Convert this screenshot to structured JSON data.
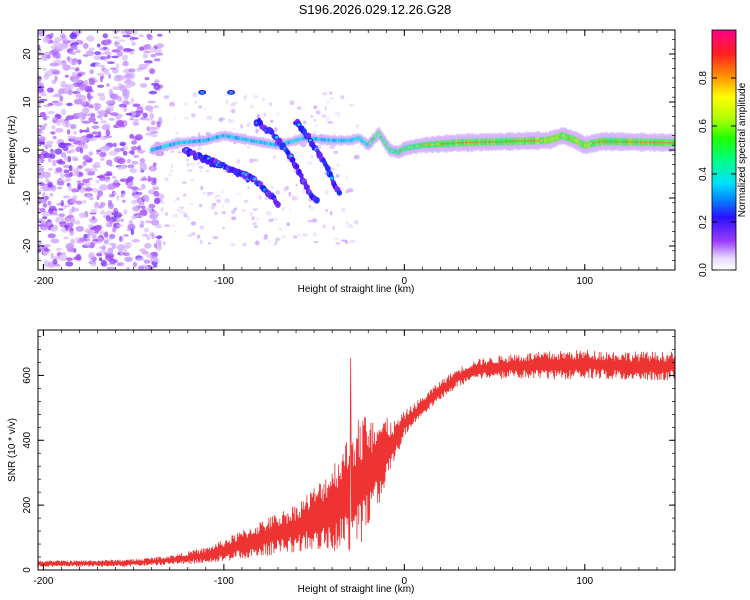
{
  "title": "S196.2026.029.12.26.G28",
  "chart_data": [
    {
      "type": "heatmap",
      "xlabel": "Height of straight line (km)",
      "ylabel": "Frequency (Hz)",
      "xlim": [
        -203,
        150
      ],
      "ylim": [
        -25,
        25
      ],
      "xticks": [
        -200,
        -100,
        0,
        100
      ],
      "yticks": [
        -20,
        -10,
        0,
        10,
        20
      ],
      "colorbar": {
        "label": "Normalized spectral amplitude",
        "range": [
          0,
          1
        ],
        "ticks": [
          0,
          0.2,
          0.4,
          0.6,
          0.8
        ],
        "tick_labels": [
          "0.0",
          "0.2",
          "0.4",
          "0.6",
          "0.8"
        ]
      },
      "ridges": [
        {
          "name": "carrier",
          "points": [
            [
              -140,
              0
            ],
            [
              -125,
              1.5
            ],
            [
              -110,
              2
            ],
            [
              -100,
              3
            ],
            [
              -85,
              2
            ],
            [
              -70,
              1
            ],
            [
              -55,
              2.5
            ],
            [
              -40,
              2
            ],
            [
              -30,
              2
            ],
            [
              -25,
              2.5
            ],
            [
              -20,
              1
            ],
            [
              -14,
              3.5
            ],
            [
              -8,
              0
            ],
            [
              -3,
              -0.5
            ],
            [
              0,
              0.3
            ],
            [
              10,
              1
            ],
            [
              30,
              1.5
            ],
            [
              60,
              1.8
            ],
            [
              80,
              2
            ],
            [
              88,
              3
            ],
            [
              95,
              2
            ],
            [
              100,
              1
            ],
            [
              110,
              1.8
            ],
            [
              150,
              1.5
            ]
          ]
        },
        {
          "name": "descending-track-1",
          "points": [
            [
              -122,
              0
            ],
            [
              -110,
              -2
            ],
            [
              -95,
              -4
            ],
            [
              -80,
              -7
            ],
            [
              -70,
              -11
            ]
          ]
        },
        {
          "name": "descending-track-2",
          "points": [
            [
              -82,
              6
            ],
            [
              -72,
              3
            ],
            [
              -62,
              -2
            ],
            [
              -54,
              -8
            ],
            [
              -48,
              -11
            ]
          ]
        },
        {
          "name": "descending-track-3",
          "points": [
            [
              -60,
              6
            ],
            [
              -52,
              2
            ],
            [
              -44,
              -3
            ],
            [
              -36,
              -9
            ]
          ]
        }
      ]
    },
    {
      "type": "line",
      "xlabel": "Height of straight line (km)",
      "ylabel": "SNR (10 * v/v)",
      "xlim": [
        -203,
        150
      ],
      "ylim": [
        0,
        740
      ],
      "xticks": [
        -200,
        -100,
        0,
        100
      ],
      "yticks": [
        0,
        200,
        400,
        600
      ],
      "color": "#ee3333",
      "envelope": {
        "x": [
          -203,
          -180,
          -150,
          -130,
          -110,
          -100,
          -80,
          -60,
          -45,
          -35,
          -25,
          -15,
          -5,
          0,
          10,
          20,
          30,
          40,
          60,
          80,
          100,
          120,
          150
        ],
        "mean": [
          20,
          20,
          22,
          30,
          45,
          60,
          95,
          130,
          175,
          215,
          270,
          330,
          400,
          450,
          505,
          555,
          595,
          620,
          628,
          630,
          635,
          630,
          628
        ],
        "spread": [
          10,
          10,
          12,
          15,
          25,
          35,
          55,
          75,
          110,
          160,
          210,
          150,
          60,
          40,
          30,
          30,
          30,
          30,
          40,
          45,
          45,
          45,
          45
        ]
      }
    }
  ]
}
